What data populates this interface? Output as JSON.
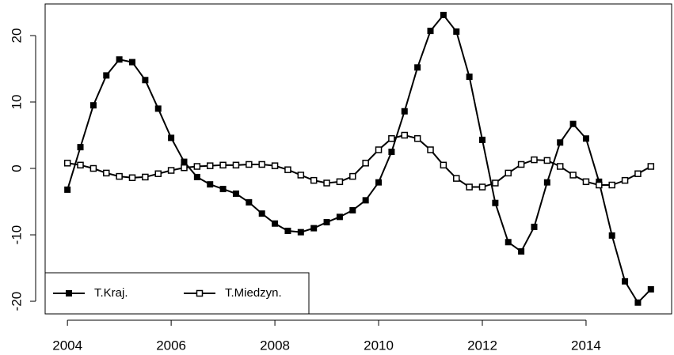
{
  "chart_data": {
    "type": "line",
    "x": [
      2004,
      2004.25,
      2004.5,
      2004.75,
      2005,
      2005.25,
      2005.5,
      2005.75,
      2006,
      2006.25,
      2006.5,
      2006.75,
      2007,
      2007.25,
      2007.5,
      2007.75,
      2008,
      2008.25,
      2008.5,
      2008.75,
      2009,
      2009.25,
      2009.5,
      2009.75,
      2010,
      2010.25,
      2010.5,
      2010.75,
      2011,
      2011.25,
      2011.5,
      2011.75,
      2012,
      2012.25,
      2012.5,
      2012.75,
      2013,
      2013.25,
      2013.5,
      2013.75,
      2014,
      2014.25,
      2014.5,
      2014.75,
      2015,
      2015.25
    ],
    "series": [
      {
        "name": "T.Kraj.",
        "color": "#000000",
        "marker": "filled-square",
        "values": [
          -3.2,
          3.2,
          9.5,
          14,
          16.4,
          16,
          13.3,
          9,
          4.6,
          1,
          -1.3,
          -2.4,
          -3.1,
          -3.8,
          -5.1,
          -6.8,
          -8.3,
          -9.4,
          -9.6,
          -9,
          -8.1,
          -7.3,
          -6.3,
          -4.8,
          -2.1,
          2.5,
          8.6,
          15.2,
          20.7,
          23.1,
          20.6,
          13.8,
          4.3,
          -5.2,
          -11.1,
          -12.5,
          -8.8,
          -2.1,
          3.9,
          6.7,
          4.5,
          -2,
          -10.1,
          -17,
          -20.2,
          -18.2
        ]
      },
      {
        "name": "T.Miedzyn.",
        "color": "#000000",
        "marker": "open-square",
        "values": [
          0.8,
          0.5,
          0,
          -0.7,
          -1.2,
          -1.4,
          -1.3,
          -0.8,
          -0.3,
          0.1,
          0.3,
          0.4,
          0.5,
          0.5,
          0.6,
          0.6,
          0.4,
          -0.2,
          -1,
          -1.8,
          -2.2,
          -2,
          -1.2,
          0.8,
          2.8,
          4.5,
          5,
          4.5,
          2.8,
          0.5,
          -1.5,
          -2.8,
          -2.8,
          -2.2,
          -0.7,
          0.6,
          1.3,
          1.2,
          0.3,
          -1,
          -2,
          -2.5,
          -2.5,
          -1.8,
          -0.8,
          0.3
        ]
      }
    ],
    "xlim": [
      2003.57,
      2015.65
    ],
    "xticks": [
      2004,
      2006,
      2008,
      2010,
      2012,
      2014
    ],
    "ylim": [
      -21.9,
      24.76
    ],
    "yticks": [
      -20,
      -10,
      0,
      10,
      20
    ],
    "grid": false,
    "legend": "bottom-left"
  }
}
